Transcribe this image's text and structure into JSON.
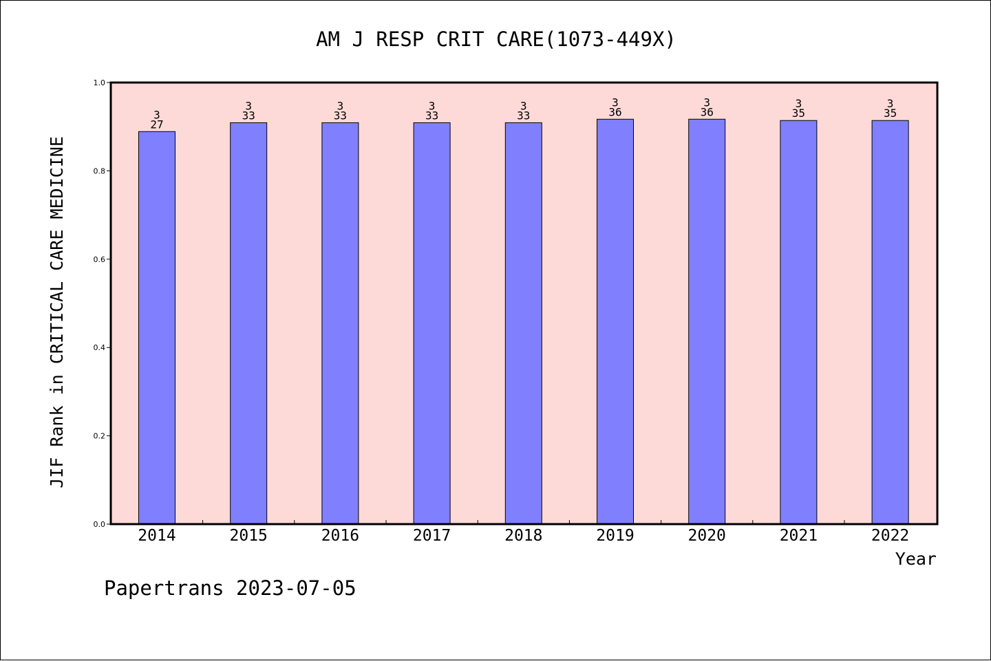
{
  "chart_data": {
    "type": "bar",
    "title": "AM J RESP CRIT CARE(1073-449X)",
    "xlabel": "Year",
    "ylabel": "JIF Rank in CRITICAL CARE MEDICINE",
    "ylim": [
      0.0,
      1.0
    ],
    "yticks": [
      "0.0",
      "0.2",
      "0.4",
      "0.6",
      "0.8",
      "1.0"
    ],
    "categories": [
      "2014",
      "2015",
      "2016",
      "2017",
      "2018",
      "2019",
      "2020",
      "2021",
      "2022"
    ],
    "values": [
      0.889,
      0.909,
      0.909,
      0.909,
      0.909,
      0.917,
      0.917,
      0.914,
      0.914
    ],
    "label_top": [
      "3",
      "3",
      "3",
      "3",
      "3",
      "3",
      "3",
      "3",
      "3"
    ],
    "label_bottom": [
      "27",
      "33",
      "33",
      "33",
      "33",
      "36",
      "36",
      "35",
      "35"
    ],
    "grid": false,
    "legend": "none"
  },
  "colors": {
    "plot_background": "#fddad8",
    "bar_fill": "#8080ff",
    "bar_stroke": "#000000",
    "axis": "#000000"
  },
  "footer": {
    "watermark": "Papertrans 2023-07-05"
  }
}
